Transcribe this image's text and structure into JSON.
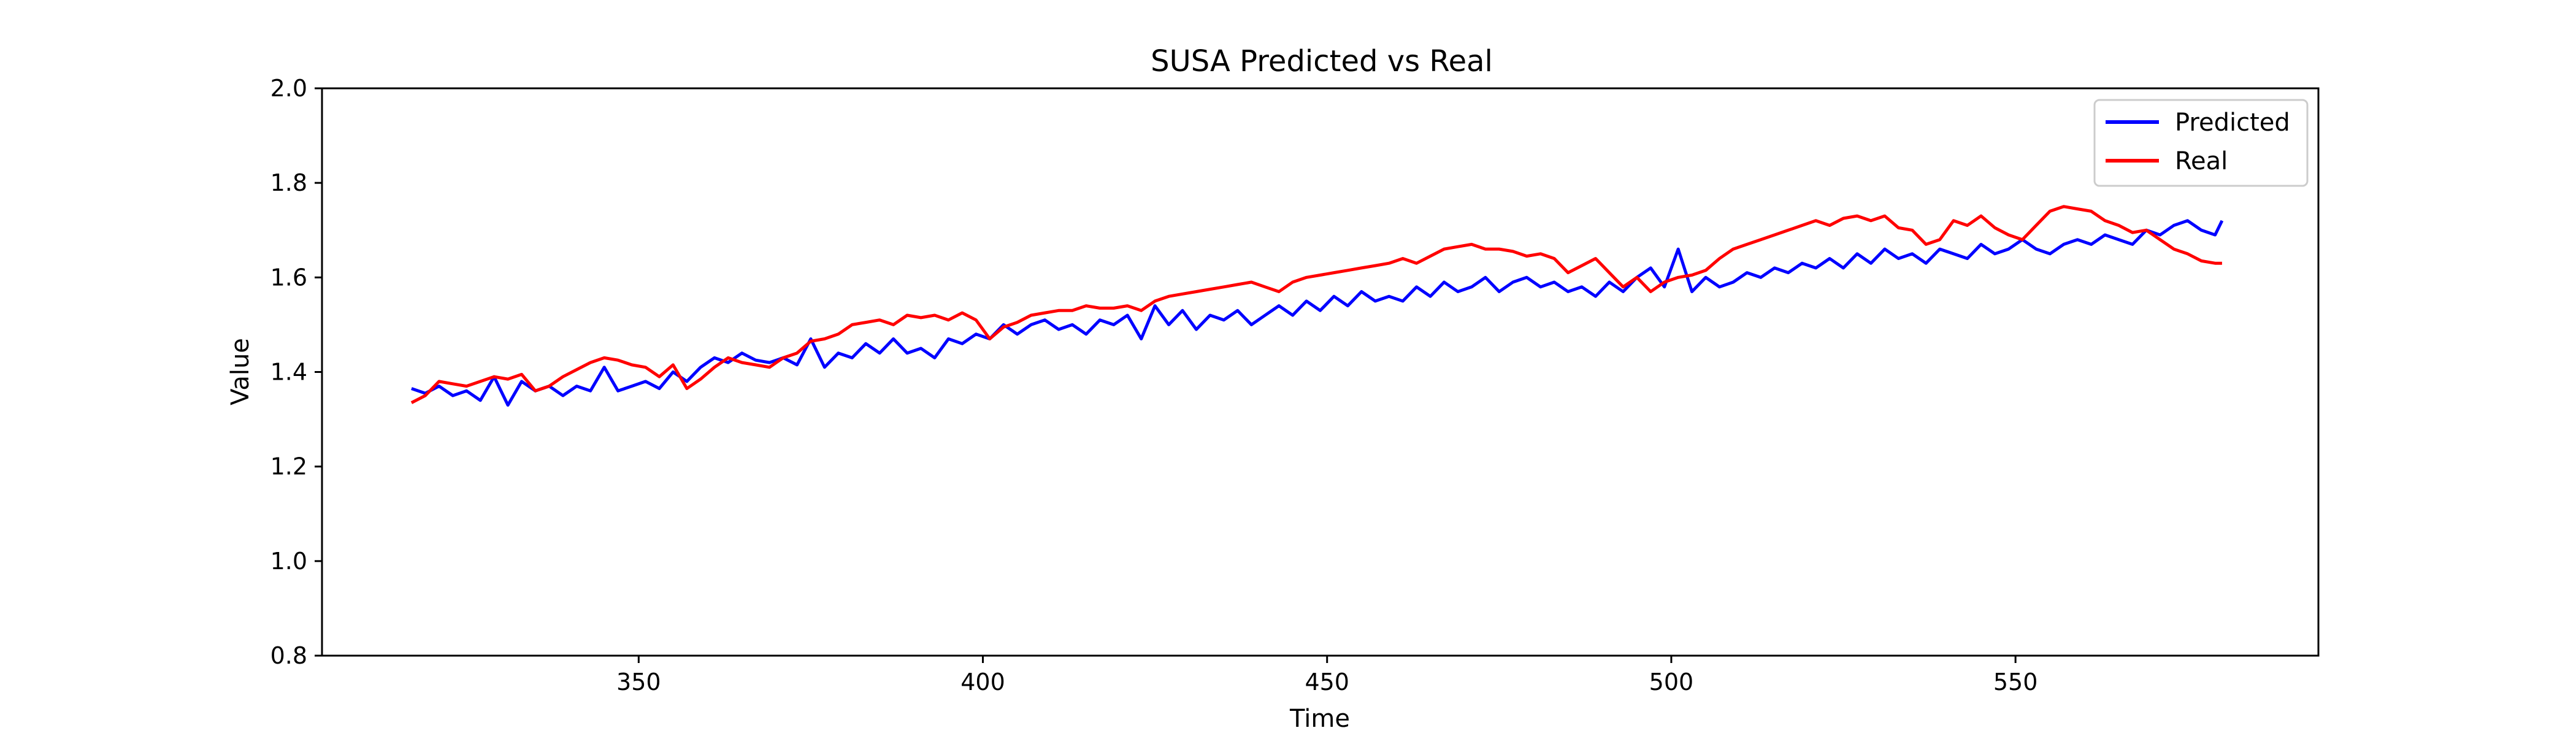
{
  "chart_data": {
    "type": "line",
    "title": "SUSA Predicted vs Real",
    "xlabel": "Time",
    "ylabel": "Value",
    "xlim": [
      304,
      594
    ],
    "ylim": [
      0.8,
      2.0
    ],
    "xticks": [
      "350",
      "400",
      "450",
      "500",
      "550"
    ],
    "xtick_values": [
      350,
      400,
      450,
      500,
      550
    ],
    "yticks": [
      "0.8",
      "1.0",
      "1.2",
      "1.4",
      "1.6",
      "1.8",
      "2.0"
    ],
    "ytick_values": [
      0.8,
      1.0,
      1.2,
      1.4,
      1.6,
      1.8,
      2.0
    ],
    "grid": false,
    "legend_position": "top-right",
    "series": [
      {
        "name": "Predicted",
        "color": "#0000ff",
        "x": [
          317,
          319,
          321,
          323,
          325,
          327,
          329,
          331,
          333,
          335,
          337,
          339,
          341,
          343,
          345,
          347,
          349,
          351,
          353,
          355,
          357,
          359,
          361,
          363,
          365,
          367,
          369,
          371,
          373,
          375,
          377,
          379,
          381,
          383,
          385,
          387,
          389,
          391,
          393,
          395,
          397,
          399,
          401,
          403,
          405,
          407,
          409,
          411,
          413,
          415,
          417,
          419,
          421,
          423,
          425,
          427,
          429,
          431,
          433,
          435,
          437,
          439,
          441,
          443,
          445,
          447,
          449,
          451,
          453,
          455,
          457,
          459,
          461,
          463,
          465,
          467,
          469,
          471,
          473,
          475,
          477,
          479,
          481,
          483,
          485,
          487,
          489,
          491,
          493,
          495,
          497,
          499,
          501,
          503,
          505,
          507,
          509,
          511,
          513,
          515,
          517,
          519,
          521,
          523,
          525,
          527,
          529,
          531,
          533,
          535,
          537,
          539,
          541,
          543,
          545,
          547,
          549,
          551,
          553,
          555,
          557,
          559,
          561,
          563,
          565,
          567,
          569,
          571,
          573,
          575,
          577,
          579,
          580
        ],
        "y": [
          1.365,
          1.355,
          1.37,
          1.35,
          1.36,
          1.34,
          1.39,
          1.33,
          1.38,
          1.36,
          1.37,
          1.35,
          1.37,
          1.36,
          1.41,
          1.36,
          1.37,
          1.38,
          1.365,
          1.4,
          1.38,
          1.41,
          1.43,
          1.42,
          1.44,
          1.425,
          1.42,
          1.43,
          1.415,
          1.47,
          1.41,
          1.44,
          1.43,
          1.46,
          1.44,
          1.47,
          1.44,
          1.45,
          1.43,
          1.47,
          1.46,
          1.48,
          1.47,
          1.5,
          1.48,
          1.5,
          1.51,
          1.49,
          1.5,
          1.48,
          1.51,
          1.5,
          1.52,
          1.47,
          1.54,
          1.5,
          1.53,
          1.49,
          1.52,
          1.51,
          1.53,
          1.5,
          1.52,
          1.54,
          1.52,
          1.55,
          1.53,
          1.56,
          1.54,
          1.57,
          1.55,
          1.56,
          1.55,
          1.58,
          1.56,
          1.59,
          1.57,
          1.58,
          1.6,
          1.57,
          1.59,
          1.6,
          1.58,
          1.59,
          1.57,
          1.58,
          1.56,
          1.59,
          1.57,
          1.6,
          1.62,
          1.58,
          1.66,
          1.57,
          1.6,
          1.58,
          1.59,
          1.61,
          1.6,
          1.62,
          1.61,
          1.63,
          1.62,
          1.64,
          1.62,
          1.65,
          1.63,
          1.66,
          1.64,
          1.65,
          1.63,
          1.66,
          1.65,
          1.64,
          1.67,
          1.65,
          1.66,
          1.68,
          1.66,
          1.65,
          1.67,
          1.68,
          1.67,
          1.69,
          1.68,
          1.67,
          1.7,
          1.69,
          1.71,
          1.72,
          1.7,
          1.69,
          1.72
        ]
      },
      {
        "name": "Real",
        "color": "#ff0000",
        "x": [
          317,
          319,
          321,
          323,
          325,
          327,
          329,
          331,
          333,
          335,
          337,
          339,
          341,
          343,
          345,
          347,
          349,
          351,
          353,
          355,
          357,
          359,
          361,
          363,
          365,
          367,
          369,
          371,
          373,
          375,
          377,
          379,
          381,
          383,
          385,
          387,
          389,
          391,
          393,
          395,
          397,
          399,
          401,
          403,
          405,
          407,
          409,
          411,
          413,
          415,
          417,
          419,
          421,
          423,
          425,
          427,
          429,
          431,
          433,
          435,
          437,
          439,
          441,
          443,
          445,
          447,
          449,
          451,
          453,
          455,
          457,
          459,
          461,
          463,
          465,
          467,
          469,
          471,
          473,
          475,
          477,
          479,
          481,
          483,
          485,
          487,
          489,
          491,
          493,
          495,
          497,
          499,
          501,
          503,
          505,
          507,
          509,
          511,
          513,
          515,
          517,
          519,
          521,
          523,
          525,
          527,
          529,
          531,
          533,
          535,
          537,
          539,
          541,
          543,
          545,
          547,
          549,
          551,
          553,
          555,
          557,
          559,
          561,
          563,
          565,
          567,
          569,
          571,
          573,
          575,
          577,
          579,
          580
        ],
        "y": [
          1.335,
          1.35,
          1.38,
          1.375,
          1.37,
          1.38,
          1.39,
          1.385,
          1.395,
          1.36,
          1.37,
          1.39,
          1.405,
          1.42,
          1.43,
          1.425,
          1.415,
          1.41,
          1.39,
          1.415,
          1.365,
          1.385,
          1.41,
          1.43,
          1.42,
          1.415,
          1.41,
          1.43,
          1.44,
          1.465,
          1.47,
          1.48,
          1.5,
          1.505,
          1.51,
          1.5,
          1.52,
          1.515,
          1.52,
          1.51,
          1.525,
          1.51,
          1.47,
          1.495,
          1.505,
          1.52,
          1.525,
          1.53,
          1.53,
          1.54,
          1.535,
          1.535,
          1.54,
          1.53,
          1.55,
          1.56,
          1.565,
          1.57,
          1.575,
          1.58,
          1.585,
          1.59,
          1.58,
          1.57,
          1.59,
          1.6,
          1.605,
          1.61,
          1.615,
          1.62,
          1.625,
          1.63,
          1.64,
          1.63,
          1.645,
          1.66,
          1.665,
          1.67,
          1.66,
          1.66,
          1.655,
          1.645,
          1.65,
          1.64,
          1.61,
          1.625,
          1.64,
          1.61,
          1.58,
          1.6,
          1.57,
          1.59,
          1.6,
          1.605,
          1.615,
          1.64,
          1.66,
          1.67,
          1.68,
          1.69,
          1.7,
          1.71,
          1.72,
          1.71,
          1.725,
          1.73,
          1.72,
          1.73,
          1.705,
          1.7,
          1.67,
          1.68,
          1.72,
          1.71,
          1.73,
          1.705,
          1.69,
          1.68,
          1.71,
          1.74,
          1.75,
          1.745,
          1.74,
          1.72,
          1.71,
          1.695,
          1.7,
          1.68,
          1.66,
          1.65,
          1.635,
          1.63,
          1.63
        ]
      }
    ]
  }
}
